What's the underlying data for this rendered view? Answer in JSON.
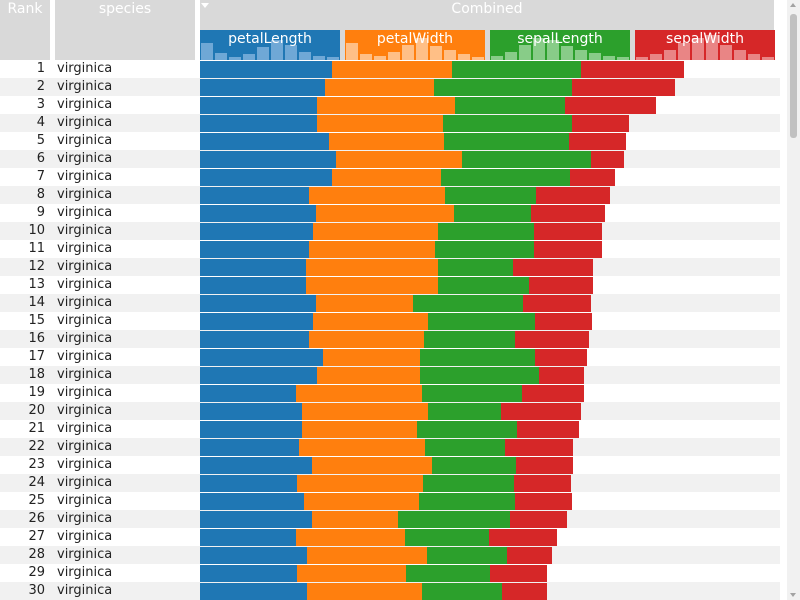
{
  "columns": {
    "rank": "Rank",
    "species": "species",
    "combined": "Combined"
  },
  "attributes": [
    {
      "name": "petalLength",
      "color": "#1f77b4",
      "hist_color": "#6fa8d6",
      "hist": [
        0.6,
        0.25,
        0.1,
        0.2,
        0.45,
        0.7,
        0.55,
        0.3,
        0.15,
        0.1
      ]
    },
    {
      "name": "petalWidth",
      "color": "#ff7f0e",
      "hist_color": "#ffbf86",
      "hist": [
        0.6,
        0.2,
        0.15,
        0.3,
        0.55,
        0.8,
        0.5,
        0.35,
        0.2,
        0.1
      ]
    },
    {
      "name": "sepalLength",
      "color": "#2ca02c",
      "hist_color": "#88cc88",
      "hist": [
        0.15,
        0.3,
        0.55,
        0.8,
        0.7,
        0.5,
        0.35,
        0.25,
        0.15,
        0.1
      ]
    },
    {
      "name": "sepalWidth",
      "color": "#d62728",
      "hist_color": "#e98585",
      "hist": [
        0.1,
        0.2,
        0.35,
        0.6,
        0.8,
        0.9,
        0.55,
        0.35,
        0.2,
        0.1
      ]
    }
  ],
  "rows": [
    {
      "rank": "1",
      "species": "virginica",
      "values": [
        0.91,
        0.83,
        0.89,
        0.71
      ]
    },
    {
      "rank": "2",
      "species": "virginica",
      "values": [
        0.86,
        0.75,
        0.95,
        0.71
      ]
    },
    {
      "rank": "3",
      "species": "virginica",
      "values": [
        0.81,
        0.95,
        0.76,
        0.63
      ]
    },
    {
      "rank": "4",
      "species": "virginica",
      "values": [
        0.81,
        0.87,
        0.89,
        0.39
      ]
    },
    {
      "rank": "5",
      "species": "virginica",
      "values": [
        0.89,
        0.79,
        0.86,
        0.39
      ]
    },
    {
      "rank": "6",
      "species": "virginica",
      "values": [
        0.94,
        0.87,
        0.89,
        0.23
      ]
    },
    {
      "rank": "7",
      "species": "virginica",
      "values": [
        0.91,
        0.75,
        0.89,
        0.31
      ]
    },
    {
      "rank": "8",
      "species": "virginica",
      "values": [
        0.75,
        0.94,
        0.63,
        0.51
      ]
    },
    {
      "rank": "9",
      "species": "virginica",
      "values": [
        0.8,
        0.95,
        0.53,
        0.51
      ]
    },
    {
      "rank": "10",
      "species": "virginica",
      "values": [
        0.78,
        0.86,
        0.66,
        0.47
      ]
    },
    {
      "rank": "11",
      "species": "virginica",
      "values": [
        0.75,
        0.87,
        0.68,
        0.47
      ]
    },
    {
      "rank": "12",
      "species": "virginica",
      "values": [
        0.73,
        0.91,
        0.52,
        0.55
      ]
    },
    {
      "rank": "13",
      "species": "virginica",
      "values": [
        0.73,
        0.91,
        0.63,
        0.44
      ]
    },
    {
      "rank": "14",
      "species": "virginica",
      "values": [
        0.8,
        0.67,
        0.76,
        0.47
      ]
    },
    {
      "rank": "15",
      "species": "virginica",
      "values": [
        0.78,
        0.79,
        0.74,
        0.39
      ]
    },
    {
      "rank": "16",
      "species": "virginica",
      "values": [
        0.75,
        0.79,
        0.63,
        0.51
      ]
    },
    {
      "rank": "17",
      "species": "virginica",
      "values": [
        0.85,
        0.67,
        0.79,
        0.36
      ]
    },
    {
      "rank": "18",
      "species": "virginica",
      "values": [
        0.81,
        0.71,
        0.82,
        0.31
      ]
    },
    {
      "rank": "19",
      "species": "virginica",
      "values": [
        0.66,
        0.87,
        0.69,
        0.43
      ]
    },
    {
      "rank": "20",
      "species": "virginica",
      "values": [
        0.7,
        0.87,
        0.5,
        0.55
      ]
    },
    {
      "rank": "21",
      "species": "virginica",
      "values": [
        0.7,
        0.79,
        0.69,
        0.43
      ]
    },
    {
      "rank": "22",
      "species": "virginica",
      "values": [
        0.68,
        0.87,
        0.55,
        0.47
      ]
    },
    {
      "rank": "23",
      "species": "virginica",
      "values": [
        0.77,
        0.83,
        0.58,
        0.39
      ]
    },
    {
      "rank": "24",
      "species": "virginica",
      "values": [
        0.67,
        0.87,
        0.63,
        0.39
      ]
    },
    {
      "rank": "25",
      "species": "virginica",
      "values": [
        0.72,
        0.79,
        0.66,
        0.39
      ]
    },
    {
      "rank": "26",
      "species": "virginica",
      "values": [
        0.77,
        0.59,
        0.77,
        0.39
      ]
    },
    {
      "rank": "27",
      "species": "virginica",
      "values": [
        0.66,
        0.75,
        0.58,
        0.47
      ]
    },
    {
      "rank": "28",
      "species": "virginica",
      "values": [
        0.74,
        0.83,
        0.55,
        0.31
      ]
    },
    {
      "rank": "29",
      "species": "virginica",
      "values": [
        0.67,
        0.75,
        0.58,
        0.39
      ]
    },
    {
      "rank": "30",
      "species": "virginica",
      "values": [
        0.74,
        0.79,
        0.55,
        0.31
      ]
    }
  ]
}
